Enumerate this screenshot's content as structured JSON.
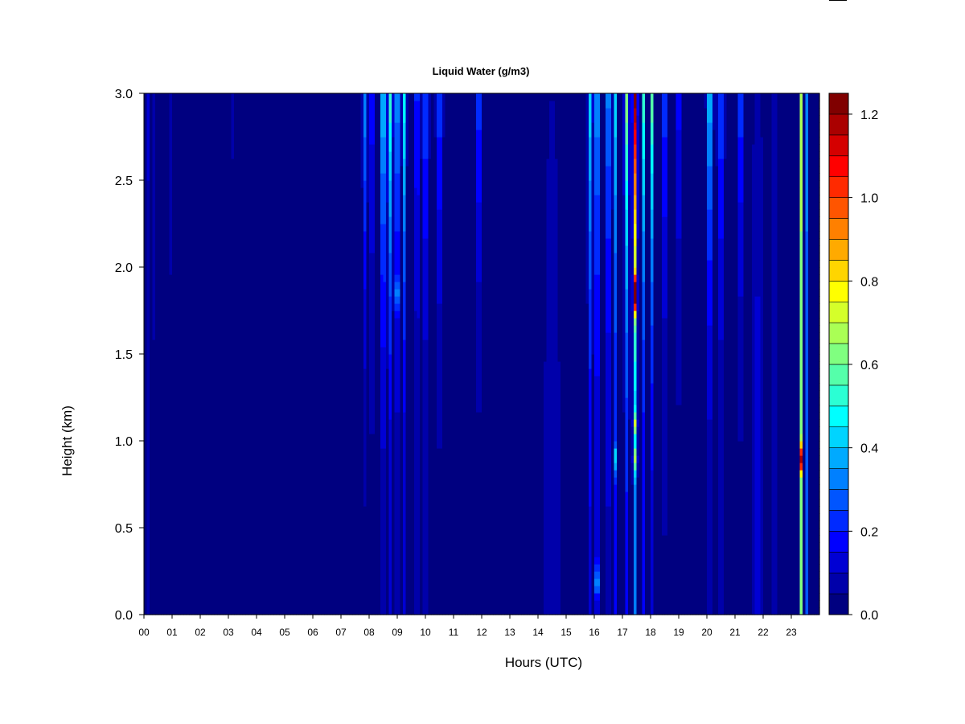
{
  "chart_data": {
    "type": "heatmap",
    "title": "Liquid Water (g/m3)",
    "xlabel": "Hours (UTC)",
    "ylabel": "Height (km)",
    "xlim": [
      0,
      24
    ],
    "ylim": [
      0,
      3
    ],
    "x_tick_labels": [
      "00",
      "01",
      "02",
      "03",
      "04",
      "05",
      "06",
      "07",
      "08",
      "09",
      "10",
      "11",
      "12",
      "13",
      "14",
      "15",
      "16",
      "17",
      "18",
      "19",
      "20",
      "21",
      "22",
      "23"
    ],
    "y_tick_labels": [
      "0.0",
      "0.5",
      "1.0",
      "1.5",
      "2.0",
      "2.5",
      "3.0"
    ],
    "colorbar": {
      "range": [
        0,
        1.25
      ],
      "step": 0.05,
      "tick_values": [
        0,
        0.2,
        0.4,
        0.6,
        0.8,
        1.0,
        1.2
      ],
      "tick_labels": [
        "0.0",
        "0.2",
        "0.4",
        "0.6",
        "0.8",
        "1.0",
        "1.2"
      ]
    },
    "background_value": 0.0,
    "column_features": [
      {
        "hour": 0.15,
        "top": 0.12,
        "bottom": 0.06,
        "halfwidth": 0.05
      },
      {
        "hour": 0.35,
        "top": 0.08,
        "bottom": 0.04,
        "halfwidth": 0.04
      },
      {
        "hour": 0.95,
        "top": 0.08,
        "bottom": 0.03,
        "halfwidth": 0.05
      },
      {
        "hour": 1.1,
        "top": 0.06,
        "bottom": 0.03,
        "halfwidth": 0.04
      },
      {
        "hour": 3.15,
        "top": 0.06,
        "bottom": 0.02,
        "halfwidth": 0.05
      },
      {
        "hour": 7.85,
        "top": 0.35,
        "bottom": 0.04,
        "halfwidth": 0.08
      },
      {
        "hour": 8.1,
        "top": 0.3,
        "bottom": 0.06,
        "halfwidth": 0.07
      },
      {
        "hour": 8.5,
        "top": 0.55,
        "bottom": 0.1,
        "halfwidth": 0.09
      },
      {
        "hour": 8.75,
        "top": 0.55,
        "bottom": 0.1,
        "halfwidth": 0.08
      },
      {
        "hour": 9.0,
        "top": 0.9,
        "bottom": 0.18,
        "halfwidth": 0.05
      },
      {
        "hour": 9.25,
        "top": 0.5,
        "bottom": 0.1,
        "halfwidth": 0.07
      },
      {
        "hour": 9.7,
        "top": 0.55,
        "bottom": 0.15,
        "halfwidth": 0.05
      },
      {
        "hour": 10.0,
        "top": 0.3,
        "bottom": 0.06,
        "halfwidth": 0.12
      },
      {
        "hour": 10.5,
        "top": 0.28,
        "bottom": 0.04,
        "halfwidth": 0.12
      },
      {
        "hour": 11.9,
        "top": 0.3,
        "bottom": 0.03,
        "halfwidth": 0.1
      },
      {
        "hour": 14.5,
        "top": 0.05,
        "bottom": 0.08,
        "halfwidth": 0.4
      },
      {
        "hour": 15.85,
        "top": 0.45,
        "bottom": 0.14,
        "halfwidth": 0.08
      },
      {
        "hour": 16.1,
        "top": 0.5,
        "bottom": 0.16,
        "halfwidth": 0.08
      },
      {
        "hour": 16.5,
        "top": 0.4,
        "bottom": 0.12,
        "halfwidth": 0.1
      },
      {
        "hour": 16.75,
        "top": 0.45,
        "bottom": 0.18,
        "halfwidth": 0.06
      },
      {
        "hour": 17.15,
        "top": 0.65,
        "bottom": 0.18,
        "halfwidth": 0.08
      },
      {
        "hour": 17.45,
        "top": 1.25,
        "bottom": 0.3,
        "halfwidth": 0.07
      },
      {
        "hour": 17.75,
        "top": 0.55,
        "bottom": 0.15,
        "halfwidth": 0.06
      },
      {
        "hour": 18.05,
        "top": 0.6,
        "bottom": 0.12,
        "halfwidth": 0.05
      },
      {
        "hour": 18.5,
        "top": 0.3,
        "bottom": 0.06,
        "halfwidth": 0.1
      },
      {
        "hour": 19.0,
        "top": 0.22,
        "bottom": 0.04,
        "halfwidth": 0.1
      },
      {
        "hour": 20.1,
        "top": 0.5,
        "bottom": 0.08,
        "halfwidth": 0.1
      },
      {
        "hour": 20.5,
        "top": 0.3,
        "bottom": 0.06,
        "halfwidth": 0.12
      },
      {
        "hour": 21.2,
        "top": 0.3,
        "bottom": 0.04,
        "halfwidth": 0.1
      },
      {
        "hour": 21.8,
        "top": 0.08,
        "bottom": 0.12,
        "halfwidth": 0.2
      },
      {
        "hour": 22.4,
        "top": 0.06,
        "bottom": 0.08,
        "halfwidth": 0.2
      },
      {
        "hour": 23.35,
        "top": 0.7,
        "bottom": 0.6,
        "halfwidth": 0.05
      },
      {
        "hour": 23.55,
        "top": 0.35,
        "bottom": 0.25,
        "halfwidth": 0.05
      }
    ],
    "local_features": [
      {
        "hour": 17.45,
        "height": 0.9,
        "value": 0.3,
        "dh": 0.08,
        "dz": 0.08
      },
      {
        "hour": 17.45,
        "height": 1.1,
        "value": 0.3,
        "dh": 0.08,
        "dz": 0.06
      },
      {
        "hour": 17.45,
        "height": 1.85,
        "value": 0.8,
        "dh": 0.06,
        "dz": 0.1
      },
      {
        "hour": 9.0,
        "height": 1.85,
        "value": 0.4,
        "dh": 0.05,
        "dz": 0.08
      },
      {
        "hour": 16.1,
        "height": 0.2,
        "value": 0.3,
        "dh": 0.08,
        "dz": 0.1
      },
      {
        "hour": 16.75,
        "height": 0.9,
        "value": 0.25,
        "dh": 0.06,
        "dz": 0.08
      },
      {
        "hour": 23.35,
        "height": 0.9,
        "value": 0.55,
        "dh": 0.04,
        "dz": 0.08
      }
    ]
  }
}
